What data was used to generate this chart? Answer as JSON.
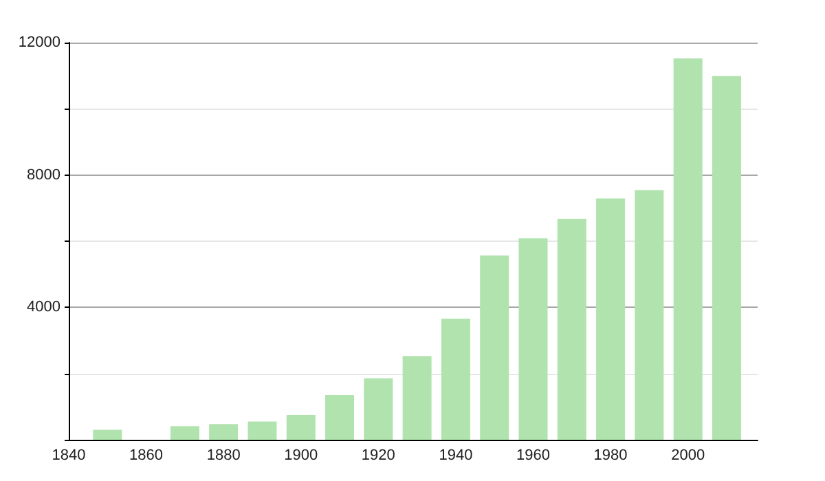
{
  "chart_data": {
    "type": "bar",
    "x": [
      1850,
      1870,
      1880,
      1890,
      1900,
      1910,
      1920,
      1930,
      1940,
      1950,
      1960,
      1970,
      1980,
      1990,
      2000,
      2010
    ],
    "values": [
      300,
      410,
      470,
      550,
      750,
      1350,
      1860,
      2530,
      3660,
      5570,
      6090,
      6670,
      7290,
      7540,
      11520,
      10990
    ],
    "color": "#b0e3ad",
    "xlim": [
      1840,
      2018
    ],
    "xticks": [
      1840,
      1860,
      1880,
      1900,
      1920,
      1940,
      1960,
      1980,
      2000
    ],
    "ylim": [
      0,
      12000
    ],
    "yticks": [
      {
        "value": 0,
        "label": null
      },
      {
        "value": 2000,
        "label": null
      },
      4000,
      {
        "value": 6000,
        "label": null
      },
      8000,
      {
        "value": 10000,
        "label": null
      },
      12000
    ],
    "grid": "y"
  }
}
